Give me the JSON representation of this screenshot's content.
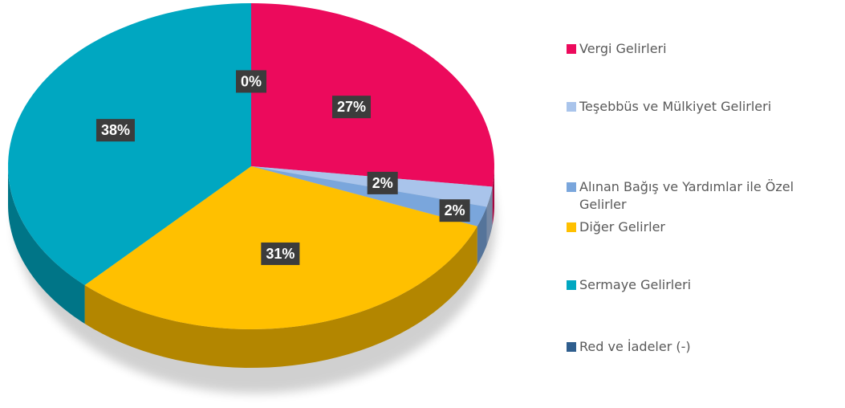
{
  "chart_data": {
    "type": "pie",
    "categories": [
      "Vergi Gelirleri",
      "Teşebbüs ve Mülkiyet Gelirleri",
      "Alınan Bağış ve Yardımlar ile Özel Gelirler",
      "Diğer Gelirler",
      "Sermaye Gelirleri",
      "Red ve İadeler (-)"
    ],
    "values": [
      27,
      2,
      2,
      31,
      38,
      0
    ],
    "value_labels": [
      "27%",
      "2%",
      "2%",
      "31%",
      "38%",
      "0%"
    ],
    "colors": [
      "#ec0a5c",
      "#a9c4eb",
      "#7aa6dc",
      "#ffc000",
      "#00a7c1",
      "#2f5e8e"
    ],
    "legend": "right"
  }
}
